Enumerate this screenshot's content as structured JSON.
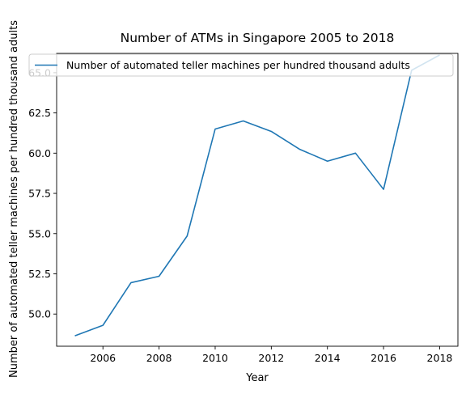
{
  "chart_data": {
    "type": "line",
    "title": "Number of ATMs in Singapore 2005 to 2018",
    "xlabel": "Year",
    "ylabel": "Number of automated teller machines per hundred thousand adults",
    "x": [
      2005,
      2006,
      2007,
      2008,
      2009,
      2010,
      2011,
      2012,
      2013,
      2014,
      2015,
      2016,
      2017,
      2018
    ],
    "series": [
      {
        "name": "Number of automated teller machines per hundred thousand adults",
        "color": "#1f77b4",
        "values": [
          48.65,
          49.3,
          51.95,
          52.35,
          54.85,
          61.5,
          62.0,
          61.35,
          60.25,
          59.5,
          60.0,
          57.75,
          65.15,
          66.1
        ]
      }
    ],
    "xlim": [
      2004.35,
      2018.65
    ],
    "ylim": [
      48.0,
      66.2
    ],
    "xticks": [
      2006,
      2008,
      2010,
      2012,
      2014,
      2016,
      2018
    ],
    "yticks": [
      50.0,
      52.5,
      55.0,
      57.5,
      60.0,
      62.5,
      65.0
    ],
    "xtick_labels": [
      "2006",
      "2008",
      "2010",
      "2012",
      "2014",
      "2016",
      "2018"
    ],
    "ytick_labels": [
      "50.0",
      "52.5",
      "55.0",
      "57.5",
      "60.0",
      "62.5",
      "65.0"
    ],
    "grid": false,
    "legend": "top-left"
  }
}
